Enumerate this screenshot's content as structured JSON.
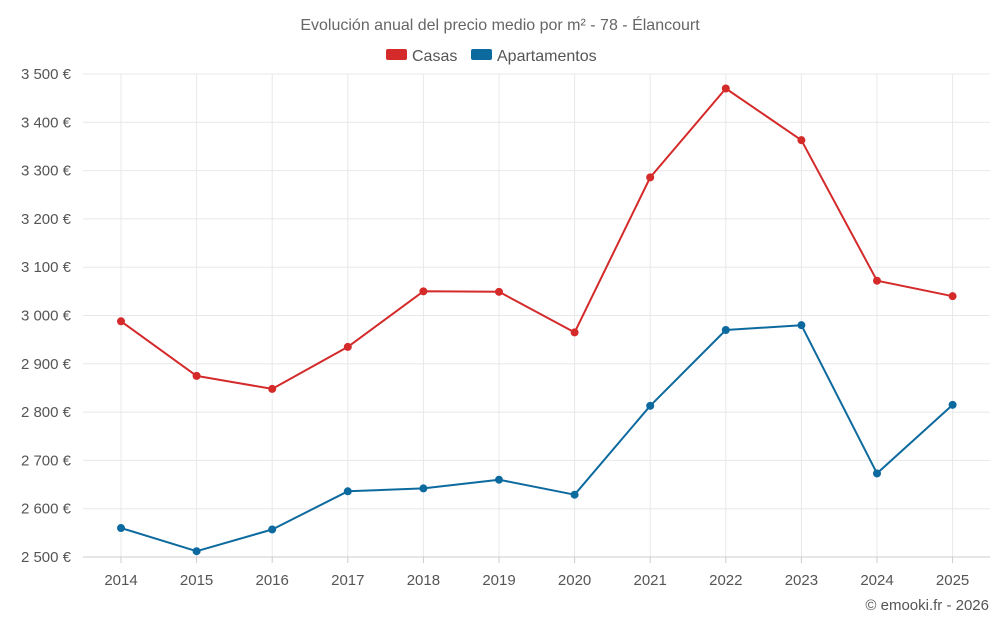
{
  "chart_data": {
    "type": "line",
    "title": "Evolución anual del precio medio por m² - 78 - Élancourt",
    "categories": [
      "2014",
      "2015",
      "2016",
      "2017",
      "2018",
      "2019",
      "2020",
      "2021",
      "2022",
      "2023",
      "2024",
      "2025"
    ],
    "series": [
      {
        "name": "Casas",
        "color": "#d42a2a",
        "values": [
          2988,
          2875,
          2848,
          2935,
          3050,
          3049,
          2965,
          3286,
          3470,
          3363,
          3072,
          3040
        ]
      },
      {
        "name": "Apartamentos",
        "color": "#0d6a9e",
        "values": [
          2560,
          2512,
          2557,
          2636,
          2642,
          2660,
          2629,
          2813,
          2970,
          2980,
          2673,
          2815
        ]
      }
    ],
    "ylim": [
      2500,
      3500
    ],
    "yticks": [
      2500,
      2600,
      2700,
      2800,
      2900,
      3000,
      3100,
      3200,
      3300,
      3400,
      3500
    ],
    "ytick_labels": [
      "2 500 €",
      "2 600 €",
      "2 700 €",
      "2 800 €",
      "2 900 €",
      "3 000 €",
      "3 100 €",
      "3 200 €",
      "3 300 €",
      "3 400 €",
      "3 500 €"
    ],
    "xlabel": "",
    "ylabel": "",
    "legend_position": "top-center",
    "grid": true
  },
  "credit": "© emooki.fr - 2026"
}
